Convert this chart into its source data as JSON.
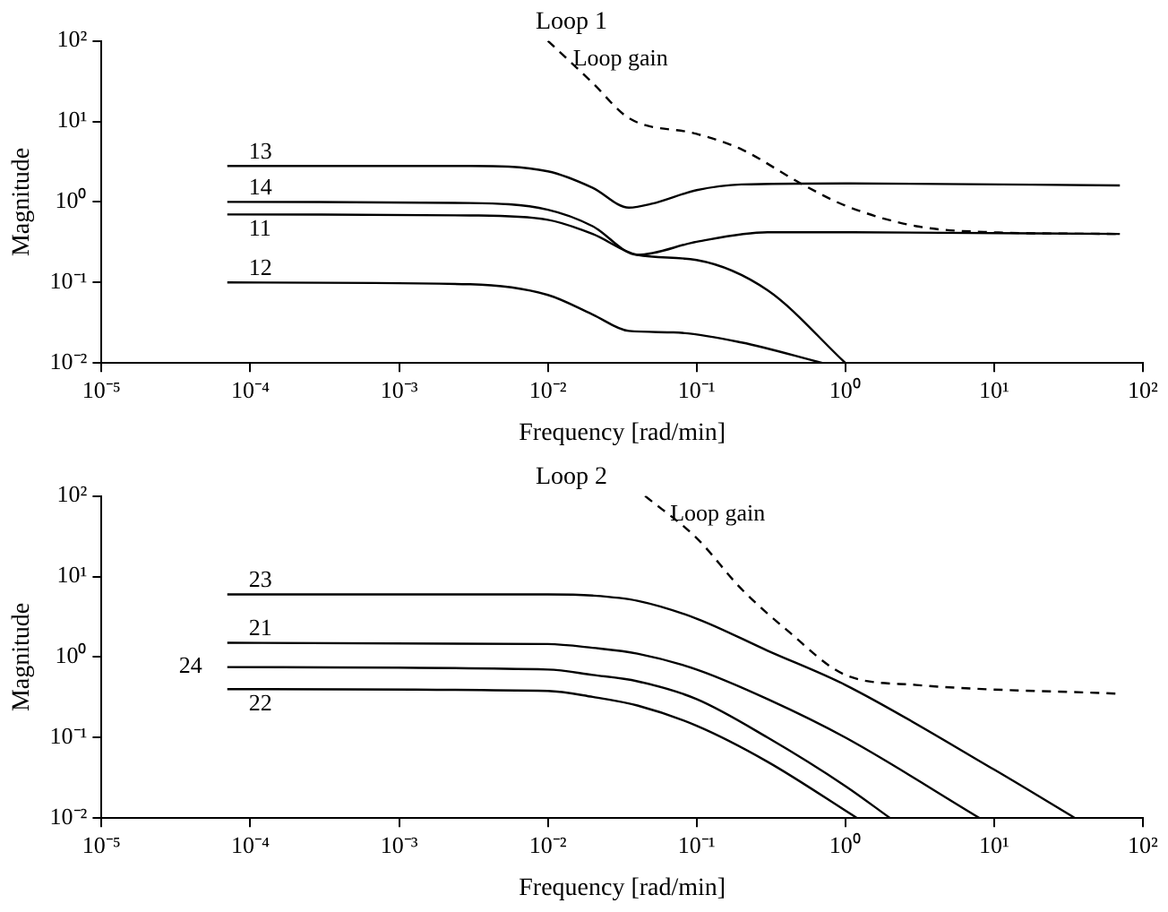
{
  "chart_data": [
    {
      "type": "line",
      "title": "Loop 1",
      "xlabel": "Frequency [rad/min]",
      "ylabel": "Magnitude",
      "log": "xy",
      "grid": false,
      "legend": false,
      "marker": "none",
      "xlim": [
        1e-05,
        100
      ],
      "ylim": [
        0.01,
        100
      ],
      "xticks": [
        {
          "value": 1e-05,
          "label": "10⁻⁵"
        },
        {
          "value": 0.0001,
          "label": "10⁻⁴"
        },
        {
          "value": 0.001,
          "label": "10⁻³"
        },
        {
          "value": 0.01,
          "label": "10⁻²"
        },
        {
          "value": 0.1,
          "label": "10⁻¹"
        },
        {
          "value": 1,
          "label": "10⁰"
        },
        {
          "value": 10,
          "label": "10¹"
        },
        {
          "value": 100,
          "label": "10²"
        }
      ],
      "yticks": [
        {
          "value": 0.01,
          "label": "10⁻²"
        },
        {
          "value": 0.1,
          "label": "10⁻¹"
        },
        {
          "value": 1,
          "label": "10⁰"
        },
        {
          "value": 10,
          "label": "10¹"
        },
        {
          "value": 100,
          "label": "10²"
        }
      ],
      "series": [
        {
          "name": "13",
          "color": "#000000",
          "line_style": "solid",
          "x": [
            7e-05,
            0.003,
            0.01,
            0.02,
            0.035,
            0.05,
            0.1,
            0.2,
            1,
            70
          ],
          "values": [
            2.8,
            2.8,
            2.4,
            1.5,
            0.85,
            0.95,
            1.4,
            1.65,
            1.7,
            1.6
          ]
        },
        {
          "name": "14",
          "color": "#000000",
          "line_style": "solid",
          "x": [
            7e-05,
            0.003,
            0.01,
            0.02,
            0.04,
            0.1,
            0.3,
            1,
            70
          ],
          "values": [
            1.0,
            0.97,
            0.8,
            0.5,
            0.22,
            0.32,
            0.42,
            0.42,
            0.4
          ]
        },
        {
          "name": "11",
          "color": "#000000",
          "line_style": "solid",
          "x": [
            7e-05,
            0.003,
            0.01,
            0.02,
            0.04,
            0.1,
            0.3,
            1
          ],
          "values": [
            0.7,
            0.68,
            0.6,
            0.4,
            0.22,
            0.19,
            0.08,
            0.01
          ]
        },
        {
          "name": "12",
          "color": "#000000",
          "line_style": "solid",
          "x": [
            7e-05,
            0.003,
            0.01,
            0.02,
            0.035,
            0.07,
            0.2,
            0.7
          ],
          "values": [
            0.1,
            0.095,
            0.07,
            0.04,
            0.025,
            0.024,
            0.018,
            0.01
          ]
        },
        {
          "name": "Loop gain",
          "color": "#000000",
          "line_style": "dashed",
          "x": [
            0.01,
            0.02,
            0.035,
            0.1,
            0.2,
            0.5,
            1,
            3,
            10,
            70
          ],
          "values": [
            100,
            30,
            11,
            7,
            4.5,
            1.7,
            0.9,
            0.5,
            0.42,
            0.4
          ]
        }
      ]
    },
    {
      "type": "line",
      "title": "Loop 2",
      "xlabel": "Frequency [rad/min]",
      "ylabel": "Magnitude",
      "log": "xy",
      "grid": false,
      "legend": false,
      "marker": "none",
      "xlim": [
        1e-05,
        100
      ],
      "ylim": [
        0.01,
        100
      ],
      "xticks": [
        {
          "value": 1e-05,
          "label": "10⁻⁵"
        },
        {
          "value": 0.0001,
          "label": "10⁻⁴"
        },
        {
          "value": 0.001,
          "label": "10⁻³"
        },
        {
          "value": 0.01,
          "label": "10⁻²"
        },
        {
          "value": 0.1,
          "label": "10⁻¹"
        },
        {
          "value": 1,
          "label": "10⁰"
        },
        {
          "value": 10,
          "label": "10¹"
        },
        {
          "value": 100,
          "label": "10²"
        }
      ],
      "yticks": [
        {
          "value": 0.01,
          "label": "10⁻²"
        },
        {
          "value": 0.1,
          "label": "10⁻¹"
        },
        {
          "value": 1,
          "label": "10⁰"
        },
        {
          "value": 10,
          "label": "10¹"
        },
        {
          "value": 100,
          "label": "10²"
        }
      ],
      "series": [
        {
          "name": "23",
          "color": "#000000",
          "line_style": "solid",
          "x": [
            7e-05,
            0.01,
            0.02,
            0.04,
            0.1,
            0.3,
            1,
            10,
            35
          ],
          "values": [
            6,
            6,
            5.8,
            5,
            3,
            1.2,
            0.45,
            0.04,
            0.01
          ]
        },
        {
          "name": "21",
          "color": "#000000",
          "line_style": "solid",
          "x": [
            7e-05,
            0.01,
            0.02,
            0.04,
            0.1,
            0.3,
            1,
            8
          ],
          "values": [
            1.5,
            1.45,
            1.3,
            1.1,
            0.7,
            0.3,
            0.1,
            0.01
          ]
        },
        {
          "name": "24",
          "color": "#000000",
          "line_style": "solid",
          "x": [
            7e-05,
            0.01,
            0.02,
            0.04,
            0.1,
            0.3,
            1,
            2
          ],
          "values": [
            0.75,
            0.7,
            0.6,
            0.5,
            0.3,
            0.1,
            0.025,
            0.01
          ]
        },
        {
          "name": "22",
          "color": "#000000",
          "line_style": "solid",
          "x": [
            7e-05,
            0.01,
            0.02,
            0.04,
            0.1,
            0.3,
            1.2
          ],
          "values": [
            0.4,
            0.38,
            0.32,
            0.25,
            0.14,
            0.05,
            0.01
          ]
        },
        {
          "name": "Loop gain",
          "color": "#000000",
          "line_style": "dashed",
          "x": [
            0.045,
            0.1,
            0.2,
            0.4,
            1,
            3,
            70
          ],
          "values": [
            100,
            30,
            7,
            2.2,
            0.6,
            0.45,
            0.35
          ]
        }
      ]
    }
  ]
}
